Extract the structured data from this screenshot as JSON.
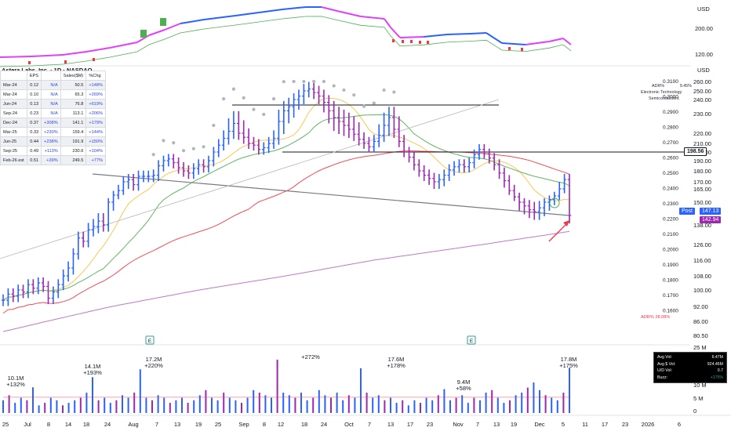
{
  "header": {
    "title": "Astera Labs, Inc. · 1D · NASDAQ",
    "currency_top": "USD",
    "currency_main": "USD"
  },
  "table": {
    "headers": [
      "",
      "EPS",
      "",
      "Sales($M)",
      "%Chg"
    ],
    "rows": [
      [
        "Mar-24",
        "0.12",
        "N/A",
        "50.5",
        "+148%"
      ],
      [
        "Mar-24",
        "0.10",
        "N/A",
        "65.3",
        "+269%"
      ],
      [
        "Jun-24",
        "0.13",
        "N/A",
        "76.8",
        "+619%"
      ],
      [
        "Sep-24",
        "0.23",
        "N/A",
        "113.1",
        "+206%"
      ],
      [
        "Dec-24",
        "0.37",
        "+308%",
        "141.1",
        "+179%"
      ],
      [
        "Mar-25",
        "0.33",
        "+230%",
        "159.4",
        "+144%"
      ],
      [
        "Jun-25",
        "0.44",
        "+238%",
        "191.9",
        "+150%"
      ],
      [
        "Sep-25",
        "0.49",
        "+113%",
        "230.6",
        "+104%"
      ],
      [
        "Feb-26 est",
        "0.51",
        "+39%",
        "249.5",
        "+77%"
      ]
    ]
  },
  "info": {
    "adr_label": "ADR%",
    "adr_value": "9.45%",
    "sector": "Electronic Technology",
    "industry": "Semiconductors",
    "adr_bottom": "ADR% 28.08%"
  },
  "price_tags": {
    "resistance": "198.56",
    "post_label": "Post",
    "post_value": "147.13",
    "close_value": "142.94"
  },
  "volume_box": {
    "rows": [
      [
        "Avg Vol:",
        "6.47M"
      ],
      [
        "Avg $ Vol:",
        "924.46M"
      ],
      [
        "U/D Vol:",
        "0.7"
      ],
      [
        "Buzz:",
        "+175%"
      ]
    ]
  },
  "colors": {
    "up": "#2962ff",
    "down": "#9c27b0",
    "ma_fast": "#f5c342",
    "ma_mid": "#4caf50",
    "ma_slow": "#f23645",
    "ma_long": "#ba68c8",
    "rs_line_up": "#2962ff",
    "rs_line_down": "#e040fb"
  },
  "chart_data": {
    "type": "ohlc",
    "price_axis": [
      "260.00",
      "250.00",
      "240.00",
      "230.00",
      "220.00",
      "210.00",
      "200.00",
      "190.00",
      "180.00",
      "170.00",
      "165.00",
      "150.00",
      "138.00",
      "126.00",
      "116.00",
      "108.00",
      "100.00",
      "92.00",
      "86.00",
      "80.50"
    ],
    "rs_axis": [
      "0.3100",
      "0.3000",
      "0.2900",
      "0.2800",
      "0.2700",
      "0.2600",
      "0.2500",
      "0.2400",
      "0.2300",
      "0.2200",
      "0.2100",
      "0.2000",
      "0.1900",
      "0.1800",
      "0.1700",
      "0.1600"
    ],
    "top_axis": [
      "200.00",
      "120.00"
    ],
    "volume_axis": [
      "25 M",
      "20 M",
      "15 M",
      "10 M",
      "5 M",
      "0"
    ],
    "x_ticks": [
      "25",
      "Jul",
      "8",
      "14",
      "18",
      "24",
      "Aug",
      "7",
      "13",
      "19",
      "25",
      "Sep",
      "8",
      "12",
      "18",
      "24",
      "Oct",
      "7",
      "13",
      "17",
      "23",
      "Nov",
      "7",
      "13",
      "19",
      "Dec",
      "5",
      "11",
      "17",
      "23",
      "2026",
      "6"
    ],
    "closes": [
      95,
      98,
      97,
      100,
      99,
      103,
      101,
      104,
      102,
      96,
      99,
      103,
      108,
      112,
      120,
      130,
      128,
      135,
      137,
      140,
      138,
      150,
      158,
      163,
      170,
      172,
      168,
      175,
      175,
      175,
      176,
      185,
      190,
      192,
      188,
      183,
      180,
      178,
      182,
      186,
      184,
      190,
      200,
      208,
      215,
      221,
      225,
      220,
      216,
      210,
      208,
      203,
      205,
      210,
      215,
      226,
      232,
      235,
      240,
      244,
      250,
      252,
      248,
      244,
      238,
      232,
      228,
      226,
      224,
      222,
      219,
      214,
      210,
      206,
      212,
      218,
      224,
      228,
      222,
      212,
      200,
      194,
      186,
      180,
      176,
      173,
      170,
      172,
      176,
      181,
      184,
      186,
      184,
      188,
      197,
      203,
      198,
      193,
      186,
      178,
      171,
      163,
      156,
      150,
      148,
      146,
      145,
      147,
      150,
      153,
      157,
      165,
      172,
      143
    ],
    "volume_labels": [
      {
        "value": "10.1M",
        "pct": "+132%"
      },
      {
        "value": "14.1M",
        "pct": "+193%"
      },
      {
        "value": "17.2M",
        "pct": "+220%"
      },
      {
        "value": "",
        "pct": "+272%"
      },
      {
        "value": "17.6M",
        "pct": "+178%"
      },
      {
        "value": "9.4M",
        "pct": "+58%"
      },
      {
        "value": "17.8M",
        "pct": "+175%"
      }
    ],
    "volumes_m": [
      5,
      7,
      4,
      6,
      5,
      10.1,
      3,
      4,
      6,
      5,
      3,
      4,
      5,
      6,
      8,
      14.1,
      5,
      6,
      4,
      5,
      7,
      6,
      8,
      17.2,
      6,
      5,
      7,
      6,
      4,
      5,
      6,
      4,
      5,
      7,
      9,
      6,
      5,
      8,
      6,
      5,
      4,
      6,
      9,
      8,
      7,
      6,
      21,
      8,
      7,
      6,
      8,
      5,
      6,
      9,
      7,
      6,
      8,
      5,
      7,
      6,
      17.6,
      8,
      6,
      7,
      5,
      6,
      4,
      5,
      3,
      5,
      4,
      6,
      5,
      7,
      9.4,
      5,
      6,
      7,
      4,
      6,
      5,
      8,
      9,
      6,
      4,
      5,
      7,
      8,
      10,
      12,
      9,
      7,
      6,
      5,
      8,
      17.8
    ]
  }
}
